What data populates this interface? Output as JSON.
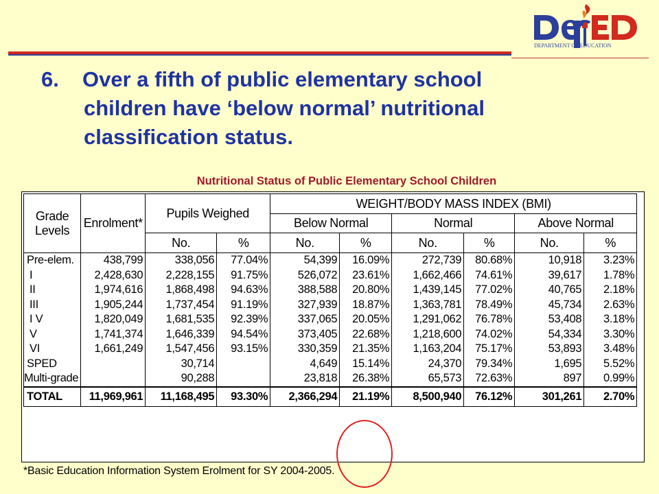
{
  "logo": {
    "wordmark": "DepED",
    "subtitle": "DEPARTMENT OF EDUCATION",
    "icon": "torch-icon",
    "colors": {
      "blue": "#2c3f9a",
      "red": "#d12a1e"
    }
  },
  "headline": {
    "number": "6.",
    "line1": "Over a fifth of public elementary school",
    "line2": "children have ‘below normal’ nutritional",
    "line3": "classification status."
  },
  "chart_title": "Nutritional Status of Public Elementary School Children",
  "table": {
    "headers": {
      "grade_levels_1": "Grade",
      "grade_levels_2": "Levels",
      "enrolment": "Enrolment*",
      "pupils_weighed": "Pupils Weighed",
      "bmi": "WEIGHT/BODY MASS INDEX (BMI)",
      "below_normal": "Below Normal",
      "normal": "Normal",
      "above_normal": "Above Normal",
      "no": "No.",
      "pct": "%"
    },
    "rows": [
      [
        "Pre-elem.",
        "438,799",
        "338,056",
        "77.04%",
        "54,399",
        "16.09%",
        "272,739",
        "80.68%",
        "10,918",
        "3.23%"
      ],
      [
        "I",
        "2,428,630",
        "2,228,155",
        "91.75%",
        "526,072",
        "23.61%",
        "1,662,466",
        "74.61%",
        "39,617",
        "1.78%"
      ],
      [
        "II",
        "1,974,616",
        "1,868,498",
        "94.63%",
        "388,588",
        "20.80%",
        "1,439,145",
        "77.02%",
        "40,765",
        "2.18%"
      ],
      [
        "III",
        "1,905,244",
        "1,737,454",
        "91.19%",
        "327,939",
        "18.87%",
        "1,363,781",
        "78.49%",
        "45,734",
        "2.63%"
      ],
      [
        "I V",
        "1,820,049",
        "1,681,535",
        "92.39%",
        "337,065",
        "20.05%",
        "1,291,062",
        "76.78%",
        "53,408",
        "3.18%"
      ],
      [
        "V",
        "1,741,374",
        "1,646,339",
        "94.54%",
        "373,405",
        "22.68%",
        "1,218,600",
        "74.02%",
        "54,334",
        "3.30%"
      ],
      [
        "VI",
        "1,661,249",
        "1,547,456",
        "93.15%",
        "330,359",
        "21.35%",
        "1,163,204",
        "75.17%",
        "53,893",
        "3.48%"
      ],
      [
        "SPED",
        "",
        "30,714",
        "",
        "4,649",
        "15.14%",
        "24,370",
        "79.34%",
        "1,695",
        "5.52%"
      ],
      [
        "Multi-grade",
        "",
        "90,288",
        "",
        "23,818",
        "26.38%",
        "65,573",
        "72.63%",
        "897",
        "0.99%"
      ]
    ],
    "total": [
      "TOTAL",
      "11,969,961",
      "11,168,495",
      "93.30%",
      "2,366,294",
      "21.19%",
      "8,500,940",
      "76.12%",
      "301,261",
      "2.70%"
    ]
  },
  "footnote": "*Basic Education Information System Erolment for SY 2004-2005.",
  "annotation": {
    "highlighted_value": "21.19%",
    "color": "#e02020"
  }
}
